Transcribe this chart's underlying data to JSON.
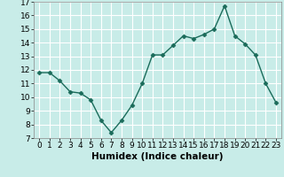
{
  "x": [
    0,
    1,
    2,
    3,
    4,
    5,
    6,
    7,
    8,
    9,
    10,
    11,
    12,
    13,
    14,
    15,
    16,
    17,
    18,
    19,
    20,
    21,
    22,
    23
  ],
  "y": [
    11.8,
    11.8,
    11.2,
    10.4,
    10.3,
    9.8,
    8.3,
    7.4,
    8.3,
    9.4,
    11.0,
    13.1,
    13.1,
    13.8,
    14.5,
    14.3,
    14.6,
    15.0,
    16.7,
    14.5,
    13.9,
    13.1,
    11.0,
    9.6
  ],
  "line_color": "#1a6b5a",
  "marker": "D",
  "marker_size": 2.5,
  "bg_color": "#c8ece8",
  "grid_color": "#ffffff",
  "xlabel": "Humidex (Indice chaleur)",
  "xlim": [
    -0.5,
    23.5
  ],
  "ylim": [
    7,
    17
  ],
  "yticks": [
    7,
    8,
    9,
    10,
    11,
    12,
    13,
    14,
    15,
    16,
    17
  ],
  "xticks": [
    0,
    1,
    2,
    3,
    4,
    5,
    6,
    7,
    8,
    9,
    10,
    11,
    12,
    13,
    14,
    15,
    16,
    17,
    18,
    19,
    20,
    21,
    22,
    23
  ],
  "label_fontsize": 7.5,
  "tick_fontsize": 6.5
}
